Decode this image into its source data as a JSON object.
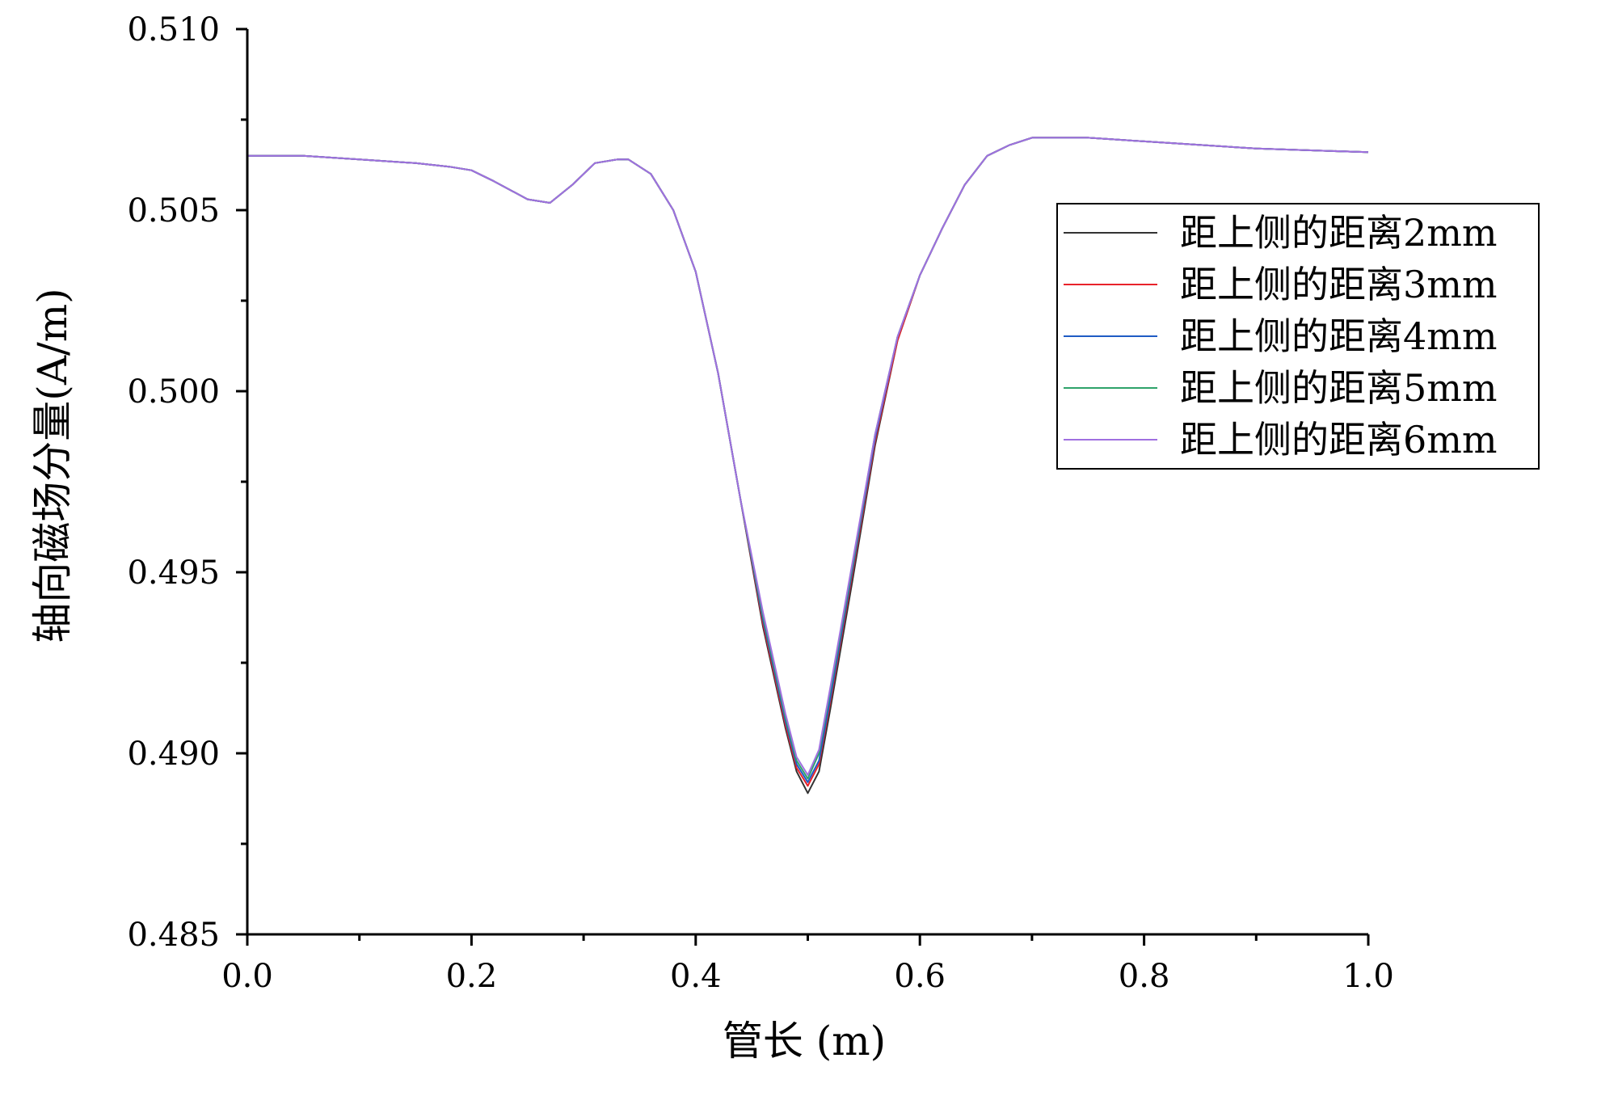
{
  "chart_data": {
    "type": "line",
    "title": "",
    "xlabel": "管长 (m)",
    "ylabel": "轴向磁场分量(A/m)",
    "xlim": [
      0.0,
      1.0
    ],
    "ylim": [
      0.485,
      0.51
    ],
    "x_ticks": [
      0.0,
      0.2,
      0.4,
      0.6,
      0.8,
      1.0
    ],
    "x_tick_labels": [
      "0.0",
      "0.2",
      "0.4",
      "0.6",
      "0.8",
      "1.0"
    ],
    "y_ticks": [
      0.485,
      0.49,
      0.495,
      0.5,
      0.505,
      0.51
    ],
    "y_tick_labels": [
      "0.485",
      "0.490",
      "0.495",
      "0.500",
      "0.505",
      "0.510"
    ],
    "grid": false,
    "legend_position": "upper-right",
    "x": [
      0.0,
      0.05,
      0.1,
      0.15,
      0.18,
      0.2,
      0.22,
      0.25,
      0.27,
      0.29,
      0.31,
      0.33,
      0.34,
      0.36,
      0.38,
      0.4,
      0.42,
      0.44,
      0.46,
      0.48,
      0.49,
      0.5,
      0.51,
      0.52,
      0.54,
      0.56,
      0.58,
      0.6,
      0.62,
      0.64,
      0.66,
      0.68,
      0.7,
      0.72,
      0.75,
      0.8,
      0.9,
      1.0
    ],
    "series": [
      {
        "name": "距上侧的距离2mm",
        "color": "#333333",
        "values": [
          0.5065,
          0.5065,
          0.5064,
          0.5063,
          0.5062,
          0.5061,
          0.5058,
          0.5053,
          0.5052,
          0.5057,
          0.5063,
          0.5064,
          0.5064,
          0.506,
          0.505,
          0.5033,
          0.5005,
          0.497,
          0.4935,
          0.4907,
          0.4895,
          0.4889,
          0.4895,
          0.4912,
          0.4948,
          0.4985,
          0.5014,
          0.5032,
          0.5045,
          0.5057,
          0.5065,
          0.5068,
          0.507,
          0.507,
          0.507,
          0.5069,
          0.5067,
          0.5066
        ]
      },
      {
        "name": "距上侧的距离3mm",
        "color": "#e8222a",
        "values": [
          0.5065,
          0.5065,
          0.5064,
          0.5063,
          0.5062,
          0.5061,
          0.5058,
          0.5053,
          0.5052,
          0.5057,
          0.5063,
          0.5064,
          0.5064,
          0.506,
          0.505,
          0.5033,
          0.5005,
          0.497,
          0.4936,
          0.4908,
          0.4896,
          0.4891,
          0.4897,
          0.4914,
          0.495,
          0.4986,
          0.5014,
          0.5032,
          0.5045,
          0.5057,
          0.5065,
          0.5068,
          0.507,
          0.507,
          0.507,
          0.5069,
          0.5067,
          0.5066
        ]
      },
      {
        "name": "距上侧的距离4mm",
        "color": "#1f5cc4",
        "values": [
          0.5065,
          0.5065,
          0.5064,
          0.5063,
          0.5062,
          0.5061,
          0.5058,
          0.5053,
          0.5052,
          0.5057,
          0.5063,
          0.5064,
          0.5064,
          0.506,
          0.505,
          0.5033,
          0.5005,
          0.497,
          0.4937,
          0.4909,
          0.4897,
          0.4892,
          0.4898,
          0.4915,
          0.4951,
          0.4987,
          0.5015,
          0.5032,
          0.5045,
          0.5057,
          0.5065,
          0.5068,
          0.507,
          0.507,
          0.507,
          0.5069,
          0.5067,
          0.5066
        ]
      },
      {
        "name": "距上侧的距离5mm",
        "color": "#2ea36a",
        "values": [
          0.5065,
          0.5065,
          0.5064,
          0.5063,
          0.5062,
          0.5061,
          0.5058,
          0.5053,
          0.5052,
          0.5057,
          0.5063,
          0.5064,
          0.5064,
          0.506,
          0.505,
          0.5033,
          0.5005,
          0.497,
          0.4938,
          0.491,
          0.4898,
          0.4893,
          0.49,
          0.4917,
          0.4952,
          0.4988,
          0.5015,
          0.5032,
          0.5045,
          0.5057,
          0.5065,
          0.5068,
          0.507,
          0.507,
          0.507,
          0.5069,
          0.5067,
          0.5066
        ]
      },
      {
        "name": "距上侧的距离6mm",
        "color": "#a070e0",
        "values": [
          0.5065,
          0.5065,
          0.5064,
          0.5063,
          0.5062,
          0.5061,
          0.5058,
          0.5053,
          0.5052,
          0.5057,
          0.5063,
          0.5064,
          0.5064,
          0.506,
          0.505,
          0.5033,
          0.5005,
          0.497,
          0.4939,
          0.4911,
          0.4899,
          0.4894,
          0.4901,
          0.4918,
          0.4953,
          0.4988,
          0.5015,
          0.5032,
          0.5045,
          0.5057,
          0.5065,
          0.5068,
          0.507,
          0.507,
          0.507,
          0.5069,
          0.5067,
          0.5066
        ]
      }
    ]
  }
}
